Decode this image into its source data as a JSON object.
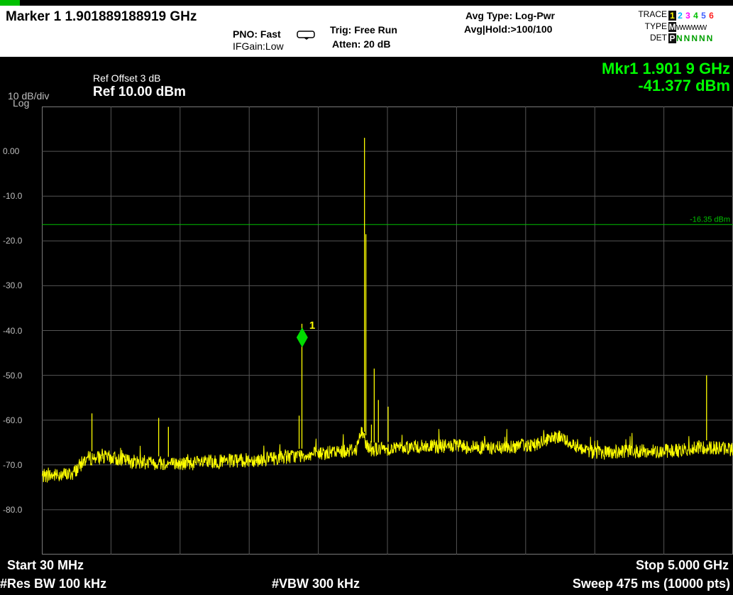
{
  "header": {
    "marker_title": "Marker 1 1.901889188919 GHz",
    "pno": "PNO: Fast",
    "ifgain": "IFGain:Low",
    "trig": "Trig: Free Run",
    "atten": "Atten: 20 dB",
    "avg_type": "Avg Type: Log-Pwr",
    "avg_hold": "Avg|Hold:>100/100",
    "trace_label": "TRACE",
    "type_label": "TYPE",
    "det_label": "DET",
    "trace_numbers": [
      "1",
      "2",
      "3",
      "4",
      "5",
      "6"
    ],
    "trace_colors": [
      "#ffff00",
      "#00b4ff",
      "#ff00ff",
      "#00c000",
      "#4060ff",
      "#ff2020"
    ],
    "type_value": "M",
    "type_rest": "WWWWW",
    "det_value": "P",
    "det_rest": "NNNNN"
  },
  "display": {
    "scale_div": "10 dB/div",
    "scale_type": "Log",
    "ref_offset": "Ref Offset 3 dB",
    "ref_level": "Ref 10.00 dBm",
    "mkr_freq": "Mkr1 1.901 9 GHz",
    "mkr_amp": "-41.377 dBm",
    "limit_line_label": "-16.35 dBm",
    "marker_number": "1",
    "y_labels": [
      "0.00",
      "-10.0",
      "-20.0",
      "-30.0",
      "-40.0",
      "-50.0",
      "-60.0",
      "-70.0",
      "-80.0"
    ]
  },
  "footer": {
    "start": "Start 30 MHz",
    "stop": "Stop 5.000 GHz",
    "res_bw": "#Res BW 100 kHz",
    "vbw": "#VBW 300 kHz",
    "sweep": "Sweep  475 ms (10000 pts)"
  },
  "chart_data": {
    "type": "line",
    "x_unit": "GHz",
    "y_unit": "dBm",
    "xlim": [
      0.03,
      5.0
    ],
    "ylim": [
      -90,
      10
    ],
    "grid": true,
    "limit_line": -16.35,
    "marker": {
      "x": 1.9019,
      "y": -41.377
    },
    "series": [
      {
        "color": "#ffff00",
        "x": [
          0.03,
          0.25,
          0.35,
          0.5,
          0.7,
          1.0,
          1.3,
          1.6,
          1.85,
          2.1,
          2.29,
          2.33,
          2.38,
          2.45,
          2.7,
          3.0,
          3.3,
          3.6,
          3.75,
          3.85,
          4.0,
          4.3,
          4.6,
          4.8,
          5.0
        ],
        "y": [
          -72.5,
          -72.0,
          -68.5,
          -68.3,
          -69.3,
          -69.8,
          -69.3,
          -68.8,
          -68.0,
          -67.3,
          -66.5,
          -62.5,
          -66.5,
          -66.5,
          -66.0,
          -65.8,
          -66.3,
          -65.3,
          -63.8,
          -65.3,
          -67.3,
          -67.0,
          -66.8,
          -66.0,
          -66.5
        ]
      }
    ],
    "spurs": [
      {
        "x": 0.39,
        "y": -58.5
      },
      {
        "x": 0.87,
        "y": -59.5
      },
      {
        "x": 0.94,
        "y": -61.5
      },
      {
        "x": 1.88,
        "y": -59.0
      },
      {
        "x": 1.9,
        "y": -38.5
      },
      {
        "x": 2.35,
        "y": 3.0
      },
      {
        "x": 2.36,
        "y": -18.5
      },
      {
        "x": 2.4,
        "y": -61.0
      },
      {
        "x": 2.42,
        "y": -48.5
      },
      {
        "x": 2.45,
        "y": -55.5
      },
      {
        "x": 2.52,
        "y": -57.0
      },
      {
        "x": 4.81,
        "y": -50.0
      }
    ]
  }
}
